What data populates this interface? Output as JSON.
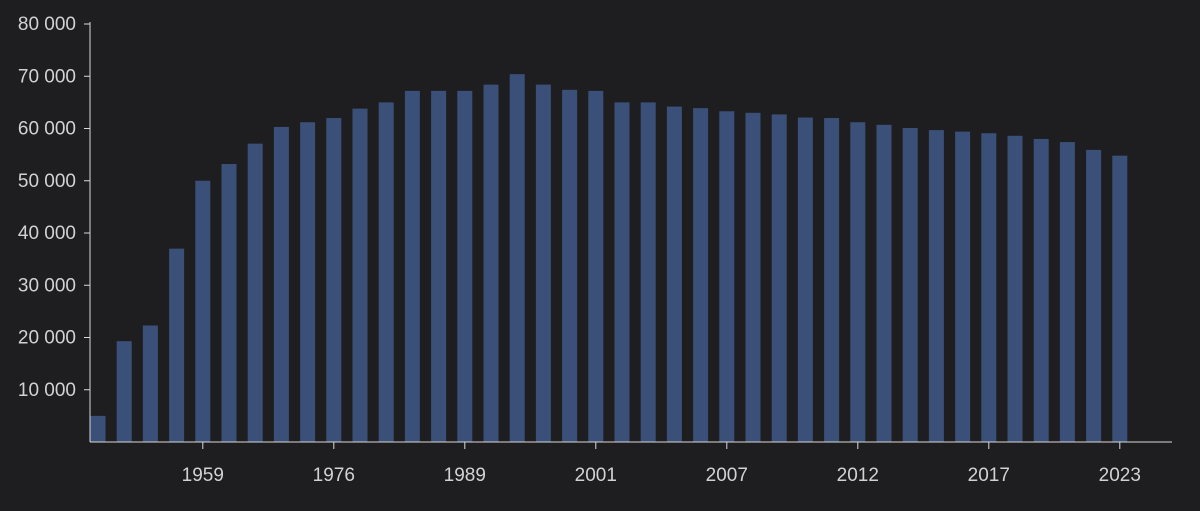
{
  "colors": {
    "background": "#1e1e21",
    "bar": "#3a5078",
    "axis": "#d8d8d8",
    "tick_text": "#d2d2d2"
  },
  "chart_data": {
    "type": "bar",
    "title": "",
    "xlabel": "",
    "ylabel": "",
    "ylim": [
      0,
      80000
    ],
    "y_ticks": [
      {
        "value": 10000,
        "label": "10 000"
      },
      {
        "value": 20000,
        "label": "20 000"
      },
      {
        "value": 30000,
        "label": "30 000"
      },
      {
        "value": 40000,
        "label": "40 000"
      },
      {
        "value": 50000,
        "label": "50 000"
      },
      {
        "value": 60000,
        "label": "60 000"
      },
      {
        "value": 70000,
        "label": "70 000"
      },
      {
        "value": 80000,
        "label": "80 000"
      }
    ],
    "x_ticks": [
      {
        "index": 4,
        "label": "1959"
      },
      {
        "index": 9,
        "label": "1976"
      },
      {
        "index": 14,
        "label": "1989"
      },
      {
        "index": 19,
        "label": "2001"
      },
      {
        "index": 24,
        "label": "2007"
      },
      {
        "index": 29,
        "label": "2012"
      },
      {
        "index": 34,
        "label": "2017"
      },
      {
        "index": 39,
        "label": "2023"
      }
    ],
    "values": [
      5000,
      19300,
      22300,
      37000,
      50000,
      53200,
      57100,
      60300,
      61200,
      62000,
      63800,
      65000,
      67200,
      67200,
      67200,
      68400,
      70400,
      68400,
      67400,
      67200,
      65000,
      65000,
      64200,
      63900,
      63300,
      63000,
      62700,
      62100,
      62000,
      61200,
      60700,
      60100,
      59700,
      59400,
      59100,
      58600,
      58000,
      57400,
      55900,
      54800
    ],
    "grid": false,
    "legend": "none"
  }
}
